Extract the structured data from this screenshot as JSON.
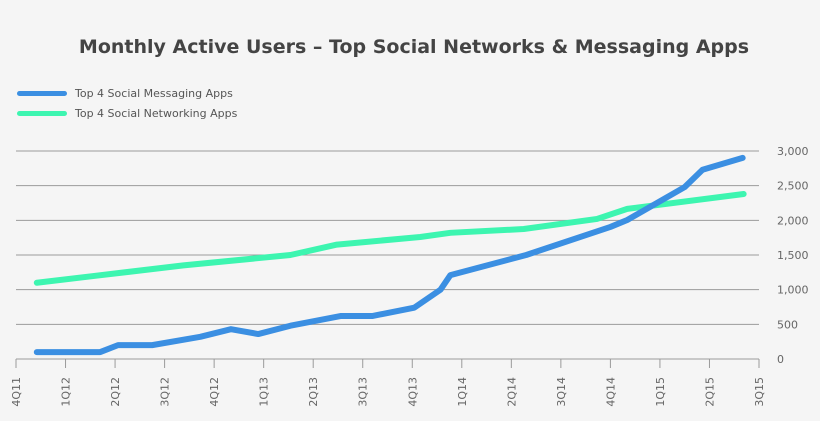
{
  "chart_data": {
    "type": "line",
    "title": "Monthly Active Users – Top Social Networks & Messaging Apps",
    "legend_position": "top-left",
    "grid": true,
    "x_ticks": [
      "4Q11",
      "1Q12",
      "2Q12",
      "3Q12",
      "4Q12",
      "1Q13",
      "2Q13",
      "3Q13",
      "4Q13",
      "1Q14",
      "2Q14",
      "3Q14",
      "4Q14",
      "1Q15",
      "2Q15",
      "3Q15"
    ],
    "y_ticks": [
      "0",
      "500",
      "1,000",
      "1,500",
      "2,000",
      "2,500",
      "3,000"
    ],
    "ylim": [
      0,
      3000
    ],
    "series": [
      {
        "name": "Top 4 Social Messaging Apps",
        "color": "#3b8fe2",
        "points": [
          [
            "4Q11+0.42",
            100
          ],
          [
            "4Q11+1.7",
            100
          ],
          [
            "4Q11+2.06",
            200
          ],
          [
            "4Q11+2.75",
            200
          ],
          [
            "4Q11+3.72",
            320
          ],
          [
            "4Q11+4.34",
            430
          ],
          [
            "4Q11+4.89",
            360
          ],
          [
            "4Q11+5.54",
            480
          ],
          [
            "4Q11+6.55",
            620
          ],
          [
            "4Q11+7.19",
            620
          ],
          [
            "4Q11+8.04",
            740
          ],
          [
            "4Q11+8.57",
            1000
          ],
          [
            "4Q11+8.77",
            1210
          ],
          [
            "4Q11+10.3",
            1500
          ],
          [
            "4Q11+12.0",
            1905
          ],
          [
            "4Q11+12.34",
            2005
          ],
          [
            "4Q11+13.5",
            2480
          ],
          [
            "4Q11+13.86",
            2730
          ],
          [
            "4Q11+14.67",
            2900
          ]
        ]
      },
      {
        "name": "Top 4 Social Networking Apps",
        "color": "#3df5b0",
        "points": [
          [
            "4Q11+0.42",
            1100
          ],
          [
            "4Q11+1.6",
            1200
          ],
          [
            "4Q11+3.38",
            1350
          ],
          [
            "4Q11+5.54",
            1500
          ],
          [
            "4Q11+6.48",
            1650
          ],
          [
            "4Q11+8.16",
            1760
          ],
          [
            "4Q11+8.77",
            1820
          ],
          [
            "4Q11+10.25",
            1875
          ],
          [
            "4Q11+11.73",
            2020
          ],
          [
            "4Q11+12.34",
            2165
          ],
          [
            "4Q11+14.69",
            2380
          ]
        ]
      }
    ]
  }
}
